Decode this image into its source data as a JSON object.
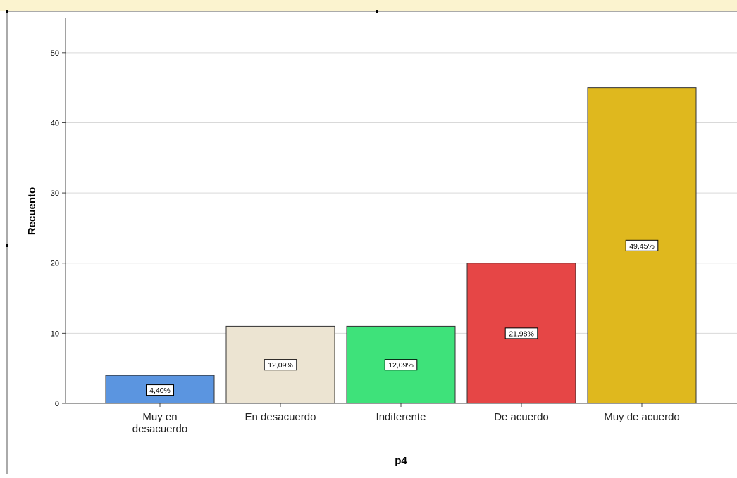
{
  "chart_data": {
    "type": "bar",
    "title": "",
    "xlabel": "p4",
    "ylabel": "Recuento",
    "ylim": [
      0,
      55
    ],
    "yticks": [
      0,
      10,
      20,
      30,
      40,
      50
    ],
    "grid": true,
    "categories": [
      "Muy en desacuerdo",
      "En desacuerdo",
      "Indiferente",
      "De acuerdo",
      "Muy de acuerdo"
    ],
    "category_lines": [
      [
        "Muy en",
        "desacuerdo"
      ],
      [
        "En desacuerdo"
      ],
      [
        "Indiferente"
      ],
      [
        "De acuerdo"
      ],
      [
        "Muy de acuerdo"
      ]
    ],
    "values": [
      4,
      11,
      11,
      20,
      45
    ],
    "data_labels": [
      "4,40%",
      "12,09%",
      "12,09%",
      "21,98%",
      "49,45%"
    ],
    "colors": [
      "#5b95e0",
      "#ece4d2",
      "#3ee27a",
      "#e64646",
      "#dfb81e"
    ]
  }
}
